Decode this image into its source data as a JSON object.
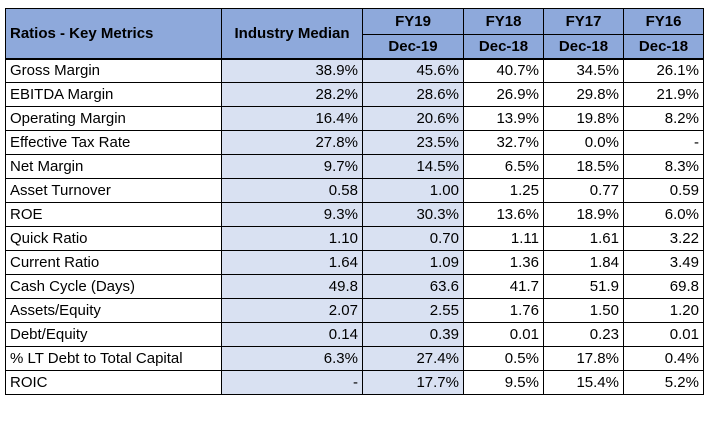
{
  "header": {
    "metrics_label": "Ratios - Key Metrics",
    "median_label": "Industry Median",
    "fiscal_years": [
      "FY19",
      "FY18",
      "FY17",
      "FY16"
    ],
    "period_ends": [
      "Dec-19",
      "Dec-18",
      "Dec-18",
      "Dec-18"
    ]
  },
  "rows": [
    {
      "metric": "Gross Margin",
      "median": "38.9%",
      "values": [
        "45.6%",
        "40.7%",
        "34.5%",
        "26.1%"
      ]
    },
    {
      "metric": "EBITDA Margin",
      "median": "28.2%",
      "values": [
        "28.6%",
        "26.9%",
        "29.8%",
        "21.9%"
      ]
    },
    {
      "metric": "Operating Margin",
      "median": "16.4%",
      "values": [
        "20.6%",
        "13.9%",
        "19.8%",
        "8.2%"
      ]
    },
    {
      "metric": "Effective Tax Rate",
      "median": "27.8%",
      "values": [
        "23.5%",
        "32.7%",
        "0.0%",
        "-"
      ]
    },
    {
      "metric": "Net Margin",
      "median": "9.7%",
      "values": [
        "14.5%",
        "6.5%",
        "18.5%",
        "8.3%"
      ]
    },
    {
      "metric": "Asset Turnover",
      "median": "0.58",
      "values": [
        "1.00",
        "1.25",
        "0.77",
        "0.59"
      ]
    },
    {
      "metric": "ROE",
      "median": "9.3%",
      "values": [
        "30.3%",
        "13.6%",
        "18.9%",
        "6.0%"
      ]
    },
    {
      "metric": "Quick Ratio",
      "median": "1.10",
      "values": [
        "0.70",
        "1.11",
        "1.61",
        "3.22"
      ]
    },
    {
      "metric": "Current Ratio",
      "median": "1.64",
      "values": [
        "1.09",
        "1.36",
        "1.84",
        "3.49"
      ]
    },
    {
      "metric": "Cash Cycle (Days)",
      "median": "49.8",
      "values": [
        "63.6",
        "41.7",
        "51.9",
        "69.8"
      ]
    },
    {
      "metric": "Assets/Equity",
      "median": "2.07",
      "values": [
        "2.55",
        "1.76",
        "1.50",
        "1.20"
      ]
    },
    {
      "metric": "Debt/Equity",
      "median": "0.14",
      "values": [
        "0.39",
        "0.01",
        "0.23",
        "0.01"
      ]
    },
    {
      "metric": "% LT Debt to Total Capital",
      "median": "6.3%",
      "values": [
        "27.4%",
        "0.5%",
        "17.8%",
        "0.4%"
      ]
    },
    {
      "metric": "ROIC",
      "median": "-",
      "values": [
        "17.7%",
        "9.5%",
        "15.4%",
        "5.2%"
      ]
    }
  ]
}
